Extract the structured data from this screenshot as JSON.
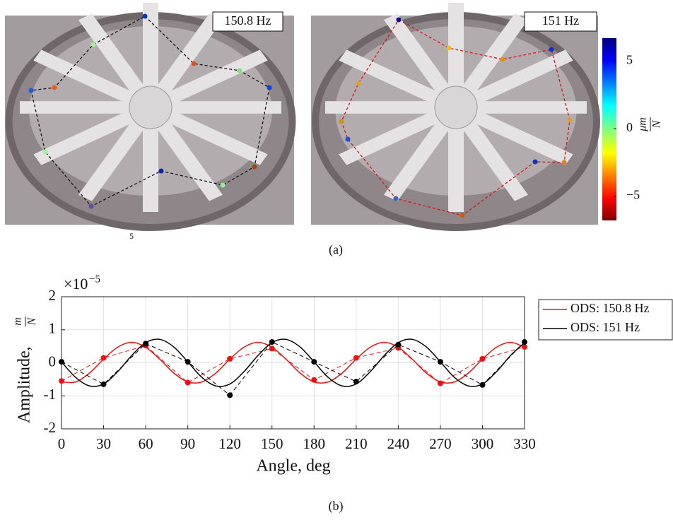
{
  "figure_a": {
    "panels": [
      {
        "label": "150.8 Hz"
      },
      {
        "label": "151 Hz"
      }
    ],
    "colorbar": {
      "lim": [
        -6.8,
        6.7
      ],
      "ticks": [
        5,
        0,
        {
          "value": -5,
          "label": "−5"
        }
      ],
      "label_numerator": "μm",
      "label_denominator": "N"
    },
    "stray_text": "5",
    "caption": "(a)"
  },
  "chart_data": {
    "type": "line",
    "xlabel": "Angle, deg",
    "ylabel": "Amplitude,",
    "ylabel_fraction": {
      "numerator": "m",
      "denominator": "N"
    },
    "y_multiplier": {
      "base": "×10",
      "exponent": "−5"
    },
    "x": [
      0,
      30,
      60,
      90,
      120,
      150,
      180,
      210,
      240,
      270,
      300,
      330
    ],
    "xlim": [
      0,
      330
    ],
    "xticks": [
      0,
      30,
      60,
      90,
      120,
      150,
      180,
      210,
      240,
      270,
      300,
      330
    ],
    "ylim": [
      -2,
      2
    ],
    "yticks": [
      2,
      1,
      0,
      -1,
      -2
    ],
    "grid": true,
    "legend": "outside-right",
    "fit_x": [
      0,
      10,
      20,
      30,
      40,
      50,
      60,
      70,
      80,
      90,
      100,
      110,
      120,
      130,
      140,
      150,
      160,
      170,
      180,
      190,
      200,
      210,
      220,
      230,
      240,
      250,
      260,
      270,
      280,
      290,
      300,
      310,
      320,
      330
    ],
    "series": [
      {
        "name": "ODS: 150.8 Hz",
        "color": "#f01010",
        "values": [
          -0.55,
          0.15,
          0.52,
          -0.6,
          0.12,
          0.43,
          -0.52,
          0.15,
          0.45,
          -0.62,
          0.12,
          0.48
        ],
        "fit_values": [
          -0.58,
          -0.58,
          -0.31,
          0.11,
          0.47,
          0.62,
          0.47,
          0.11,
          -0.31,
          -0.58,
          -0.58,
          -0.31,
          0.11,
          0.47,
          0.62,
          0.47,
          0.11,
          -0.31,
          -0.58,
          -0.58,
          -0.31,
          0.11,
          0.47,
          0.62,
          0.47,
          0.11,
          -0.31,
          -0.58,
          -0.58,
          -0.31,
          0.11,
          0.47,
          0.62,
          0.47
        ]
      },
      {
        "name": "ODS: 151 Hz",
        "color": "#000000",
        "values": [
          0.03,
          -0.65,
          0.58,
          0.03,
          -0.98,
          0.63,
          0.03,
          -0.57,
          0.55,
          0.03,
          -0.67,
          0.63
        ],
        "fit_values": [
          0.03,
          -0.44,
          -0.7,
          -0.64,
          -0.27,
          0.22,
          0.61,
          0.71,
          0.48,
          0.03,
          -0.44,
          -0.7,
          -0.64,
          -0.27,
          0.22,
          0.61,
          0.71,
          0.48,
          0.03,
          -0.44,
          -0.7,
          -0.64,
          -0.27,
          0.22,
          0.61,
          0.71,
          0.48,
          0.03,
          -0.44,
          -0.7,
          -0.64,
          -0.27,
          0.22,
          0.61
        ]
      }
    ],
    "caption": "(b)"
  }
}
